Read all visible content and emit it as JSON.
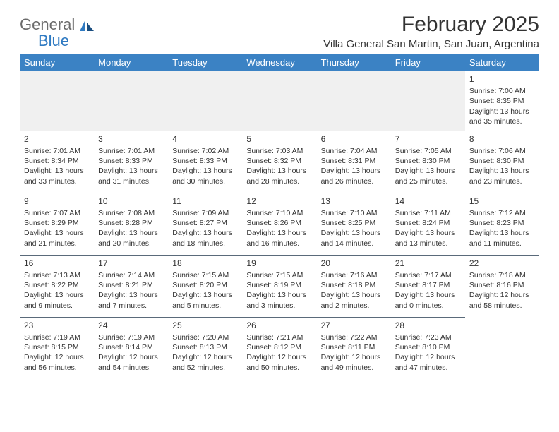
{
  "logo": {
    "text1": "General",
    "text2": "Blue"
  },
  "title": "February 2025",
  "location": "Villa General San Martin, San Juan, Argentina",
  "colors": {
    "header_bg": "#3b82c4",
    "header_text": "#ffffff",
    "border": "#5a6a7a",
    "blank_bg": "#f0f0f0",
    "text": "#333333",
    "logo_gray": "#6b6b6b",
    "logo_blue": "#2f7ac2"
  },
  "columns": [
    "Sunday",
    "Monday",
    "Tuesday",
    "Wednesday",
    "Thursday",
    "Friday",
    "Saturday"
  ],
  "weeks": [
    [
      null,
      null,
      null,
      null,
      null,
      null,
      {
        "n": "1",
        "sunrise": "Sunrise: 7:00 AM",
        "sunset": "Sunset: 8:35 PM",
        "daylight": "Daylight: 13 hours and 35 minutes."
      }
    ],
    [
      {
        "n": "2",
        "sunrise": "Sunrise: 7:01 AM",
        "sunset": "Sunset: 8:34 PM",
        "daylight": "Daylight: 13 hours and 33 minutes."
      },
      {
        "n": "3",
        "sunrise": "Sunrise: 7:01 AM",
        "sunset": "Sunset: 8:33 PM",
        "daylight": "Daylight: 13 hours and 31 minutes."
      },
      {
        "n": "4",
        "sunrise": "Sunrise: 7:02 AM",
        "sunset": "Sunset: 8:33 PM",
        "daylight": "Daylight: 13 hours and 30 minutes."
      },
      {
        "n": "5",
        "sunrise": "Sunrise: 7:03 AM",
        "sunset": "Sunset: 8:32 PM",
        "daylight": "Daylight: 13 hours and 28 minutes."
      },
      {
        "n": "6",
        "sunrise": "Sunrise: 7:04 AM",
        "sunset": "Sunset: 8:31 PM",
        "daylight": "Daylight: 13 hours and 26 minutes."
      },
      {
        "n": "7",
        "sunrise": "Sunrise: 7:05 AM",
        "sunset": "Sunset: 8:30 PM",
        "daylight": "Daylight: 13 hours and 25 minutes."
      },
      {
        "n": "8",
        "sunrise": "Sunrise: 7:06 AM",
        "sunset": "Sunset: 8:30 PM",
        "daylight": "Daylight: 13 hours and 23 minutes."
      }
    ],
    [
      {
        "n": "9",
        "sunrise": "Sunrise: 7:07 AM",
        "sunset": "Sunset: 8:29 PM",
        "daylight": "Daylight: 13 hours and 21 minutes."
      },
      {
        "n": "10",
        "sunrise": "Sunrise: 7:08 AM",
        "sunset": "Sunset: 8:28 PM",
        "daylight": "Daylight: 13 hours and 20 minutes."
      },
      {
        "n": "11",
        "sunrise": "Sunrise: 7:09 AM",
        "sunset": "Sunset: 8:27 PM",
        "daylight": "Daylight: 13 hours and 18 minutes."
      },
      {
        "n": "12",
        "sunrise": "Sunrise: 7:10 AM",
        "sunset": "Sunset: 8:26 PM",
        "daylight": "Daylight: 13 hours and 16 minutes."
      },
      {
        "n": "13",
        "sunrise": "Sunrise: 7:10 AM",
        "sunset": "Sunset: 8:25 PM",
        "daylight": "Daylight: 13 hours and 14 minutes."
      },
      {
        "n": "14",
        "sunrise": "Sunrise: 7:11 AM",
        "sunset": "Sunset: 8:24 PM",
        "daylight": "Daylight: 13 hours and 13 minutes."
      },
      {
        "n": "15",
        "sunrise": "Sunrise: 7:12 AM",
        "sunset": "Sunset: 8:23 PM",
        "daylight": "Daylight: 13 hours and 11 minutes."
      }
    ],
    [
      {
        "n": "16",
        "sunrise": "Sunrise: 7:13 AM",
        "sunset": "Sunset: 8:22 PM",
        "daylight": "Daylight: 13 hours and 9 minutes."
      },
      {
        "n": "17",
        "sunrise": "Sunrise: 7:14 AM",
        "sunset": "Sunset: 8:21 PM",
        "daylight": "Daylight: 13 hours and 7 minutes."
      },
      {
        "n": "18",
        "sunrise": "Sunrise: 7:15 AM",
        "sunset": "Sunset: 8:20 PM",
        "daylight": "Daylight: 13 hours and 5 minutes."
      },
      {
        "n": "19",
        "sunrise": "Sunrise: 7:15 AM",
        "sunset": "Sunset: 8:19 PM",
        "daylight": "Daylight: 13 hours and 3 minutes."
      },
      {
        "n": "20",
        "sunrise": "Sunrise: 7:16 AM",
        "sunset": "Sunset: 8:18 PM",
        "daylight": "Daylight: 13 hours and 2 minutes."
      },
      {
        "n": "21",
        "sunrise": "Sunrise: 7:17 AM",
        "sunset": "Sunset: 8:17 PM",
        "daylight": "Daylight: 13 hours and 0 minutes."
      },
      {
        "n": "22",
        "sunrise": "Sunrise: 7:18 AM",
        "sunset": "Sunset: 8:16 PM",
        "daylight": "Daylight: 12 hours and 58 minutes."
      }
    ],
    [
      {
        "n": "23",
        "sunrise": "Sunrise: 7:19 AM",
        "sunset": "Sunset: 8:15 PM",
        "daylight": "Daylight: 12 hours and 56 minutes."
      },
      {
        "n": "24",
        "sunrise": "Sunrise: 7:19 AM",
        "sunset": "Sunset: 8:14 PM",
        "daylight": "Daylight: 12 hours and 54 minutes."
      },
      {
        "n": "25",
        "sunrise": "Sunrise: 7:20 AM",
        "sunset": "Sunset: 8:13 PM",
        "daylight": "Daylight: 12 hours and 52 minutes."
      },
      {
        "n": "26",
        "sunrise": "Sunrise: 7:21 AM",
        "sunset": "Sunset: 8:12 PM",
        "daylight": "Daylight: 12 hours and 50 minutes."
      },
      {
        "n": "27",
        "sunrise": "Sunrise: 7:22 AM",
        "sunset": "Sunset: 8:11 PM",
        "daylight": "Daylight: 12 hours and 49 minutes."
      },
      {
        "n": "28",
        "sunrise": "Sunrise: 7:23 AM",
        "sunset": "Sunset: 8:10 PM",
        "daylight": "Daylight: 12 hours and 47 minutes."
      },
      null
    ]
  ]
}
